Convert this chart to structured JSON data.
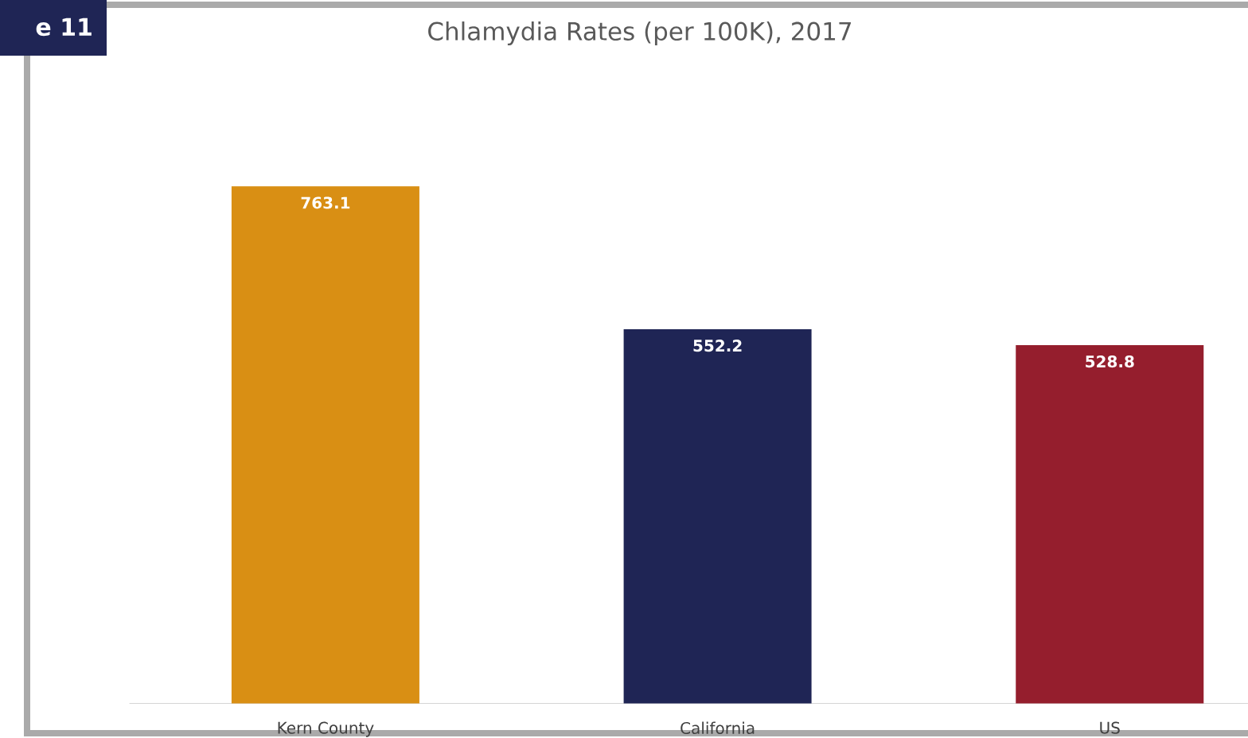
{
  "chart_data": {
    "type": "bar",
    "title": "Chlamydia Rates (per 100K), 2017",
    "categories": [
      "Kern County",
      "California",
      "US"
    ],
    "values": [
      763.1,
      552.2,
      528.8
    ],
    "colors": [
      "#d98f14",
      "#1f2555",
      "#951e2d"
    ],
    "data_labels": true,
    "annotations": [
      "e 11"
    ]
  }
}
